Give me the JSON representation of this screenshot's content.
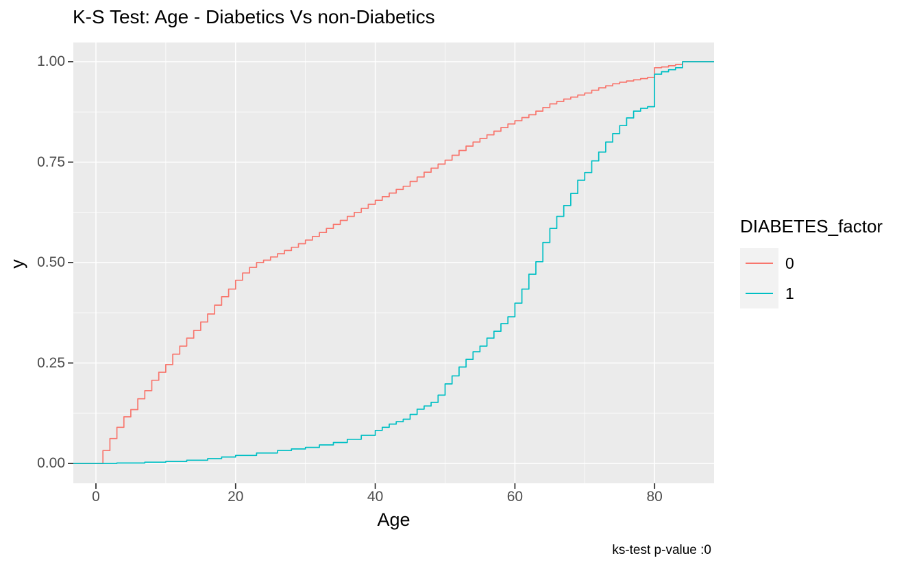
{
  "chart_data": {
    "type": "line",
    "subtype": "ecdf-step",
    "title": "K-S Test: Age - Diabetics Vs non-Diabetics",
    "xlabel": "Age",
    "ylabel": "y",
    "caption": "ks-test p-value :0",
    "grid": true,
    "panel_bg": "#EBEBEB",
    "grid_color": "#FFFFFF",
    "tick_color": "#333333",
    "xlim": [
      -3.3,
      88.5
    ],
    "ylim": [
      -0.05,
      1.05
    ],
    "x_ticks": [
      0,
      20,
      40,
      60,
      80
    ],
    "x_tick_labels": [
      "0",
      "20",
      "40",
      "60",
      "80"
    ],
    "x_minor_ticks": [
      10,
      30,
      50,
      70
    ],
    "y_ticks": [
      0,
      0.25,
      0.5,
      0.75,
      1
    ],
    "y_tick_labels": [
      "0.00",
      "0.25",
      "0.50",
      "0.75",
      "1.00"
    ],
    "y_minor_ticks": [
      0.125,
      0.375,
      0.625,
      0.875
    ],
    "legend": {
      "title": "DIABETES_factor",
      "position": "right",
      "entries": [
        {
          "label": "0",
          "color": "#F8766D"
        },
        {
          "label": "1",
          "color": "#00BFC4"
        }
      ]
    },
    "series": [
      {
        "name": "0",
        "color": "#F8766D",
        "points": [
          [
            0,
            0
          ],
          [
            1,
            0.032
          ],
          [
            2,
            0.062
          ],
          [
            3,
            0.09
          ],
          [
            4,
            0.116
          ],
          [
            5,
            0.134
          ],
          [
            6,
            0.161
          ],
          [
            7,
            0.181
          ],
          [
            8,
            0.207
          ],
          [
            9,
            0.227
          ],
          [
            10,
            0.246
          ],
          [
            11,
            0.272
          ],
          [
            12,
            0.292
          ],
          [
            13,
            0.312
          ],
          [
            14,
            0.331
          ],
          [
            15,
            0.352
          ],
          [
            16,
            0.372
          ],
          [
            17,
            0.394
          ],
          [
            18,
            0.415
          ],
          [
            19,
            0.434
          ],
          [
            20,
            0.456
          ],
          [
            21,
            0.474
          ],
          [
            22,
            0.488
          ],
          [
            23,
            0.5
          ],
          [
            24,
            0.506
          ],
          [
            25,
            0.514
          ],
          [
            26,
            0.522
          ],
          [
            27,
            0.53
          ],
          [
            28,
            0.538
          ],
          [
            29,
            0.547
          ],
          [
            30,
            0.556
          ],
          [
            31,
            0.565
          ],
          [
            32,
            0.575
          ],
          [
            33,
            0.585
          ],
          [
            34,
            0.595
          ],
          [
            35,
            0.605
          ],
          [
            36,
            0.615
          ],
          [
            37,
            0.625
          ],
          [
            38,
            0.635
          ],
          [
            39,
            0.645
          ],
          [
            40,
            0.655
          ],
          [
            41,
            0.664
          ],
          [
            42,
            0.673
          ],
          [
            43,
            0.682
          ],
          [
            44,
            0.69
          ],
          [
            45,
            0.702
          ],
          [
            46,
            0.713
          ],
          [
            47,
            0.725
          ],
          [
            48,
            0.735
          ],
          [
            49,
            0.745
          ],
          [
            50,
            0.755
          ],
          [
            51,
            0.767
          ],
          [
            52,
            0.779
          ],
          [
            53,
            0.79
          ],
          [
            54,
            0.8
          ],
          [
            55,
            0.809
          ],
          [
            56,
            0.818
          ],
          [
            57,
            0.827
          ],
          [
            58,
            0.836
          ],
          [
            59,
            0.845
          ],
          [
            60,
            0.853
          ],
          [
            61,
            0.861
          ],
          [
            62,
            0.868
          ],
          [
            63,
            0.877
          ],
          [
            64,
            0.886
          ],
          [
            65,
            0.895
          ],
          [
            66,
            0.901
          ],
          [
            67,
            0.907
          ],
          [
            68,
            0.912
          ],
          [
            69,
            0.917
          ],
          [
            70,
            0.922
          ],
          [
            71,
            0.929
          ],
          [
            72,
            0.935
          ],
          [
            73,
            0.94
          ],
          [
            74,
            0.945
          ],
          [
            75,
            0.949
          ],
          [
            76,
            0.952
          ],
          [
            77,
            0.955
          ],
          [
            78,
            0.958
          ],
          [
            79,
            0.961
          ],
          [
            80,
            0.985
          ],
          [
            81,
            0.987
          ],
          [
            82,
            0.99
          ],
          [
            83,
            0.993
          ],
          [
            84,
            1.0
          ]
        ]
      },
      {
        "name": "1",
        "color": "#00BFC4",
        "points": [
          [
            0,
            0
          ],
          [
            3,
            0.001
          ],
          [
            7,
            0.003
          ],
          [
            10,
            0.005
          ],
          [
            13,
            0.008
          ],
          [
            16,
            0.012
          ],
          [
            18,
            0.016
          ],
          [
            20,
            0.02
          ],
          [
            23,
            0.026
          ],
          [
            26,
            0.032
          ],
          [
            28,
            0.036
          ],
          [
            30,
            0.04
          ],
          [
            32,
            0.046
          ],
          [
            34,
            0.052
          ],
          [
            36,
            0.06
          ],
          [
            38,
            0.07
          ],
          [
            40,
            0.082
          ],
          [
            41,
            0.09
          ],
          [
            42,
            0.098
          ],
          [
            43,
            0.104
          ],
          [
            44,
            0.11
          ],
          [
            45,
            0.122
          ],
          [
            46,
            0.135
          ],
          [
            47,
            0.143
          ],
          [
            48,
            0.152
          ],
          [
            49,
            0.17
          ],
          [
            50,
            0.198
          ],
          [
            51,
            0.218
          ],
          [
            52,
            0.24
          ],
          [
            53,
            0.259
          ],
          [
            54,
            0.278
          ],
          [
            55,
            0.292
          ],
          [
            56,
            0.312
          ],
          [
            57,
            0.329
          ],
          [
            58,
            0.348
          ],
          [
            59,
            0.365
          ],
          [
            60,
            0.399
          ],
          [
            61,
            0.434
          ],
          [
            62,
            0.471
          ],
          [
            63,
            0.502
          ],
          [
            64,
            0.55
          ],
          [
            65,
            0.585
          ],
          [
            66,
            0.615
          ],
          [
            67,
            0.642
          ],
          [
            68,
            0.672
          ],
          [
            69,
            0.705
          ],
          [
            70,
            0.724
          ],
          [
            71,
            0.753
          ],
          [
            72,
            0.775
          ],
          [
            73,
            0.8
          ],
          [
            74,
            0.821
          ],
          [
            75,
            0.841
          ],
          [
            76,
            0.86
          ],
          [
            77,
            0.877
          ],
          [
            78,
            0.884
          ],
          [
            79,
            0.888
          ],
          [
            80,
            0.969
          ],
          [
            81,
            0.975
          ],
          [
            82,
            0.98
          ],
          [
            83,
            0.985
          ],
          [
            84,
            1.0
          ]
        ]
      }
    ]
  }
}
